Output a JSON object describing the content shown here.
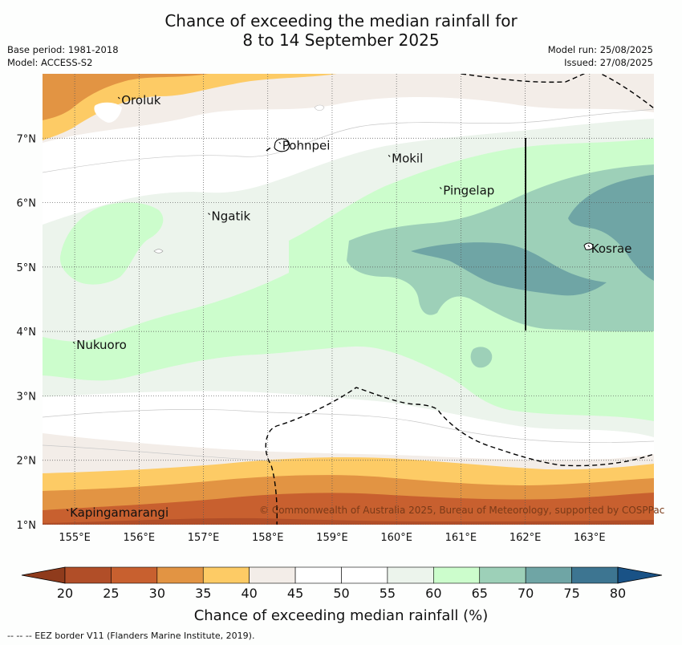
{
  "title_line1": "Chance of exceeding the median rainfall for",
  "title_line2": "8 to 14 September 2025",
  "base_period": "Base period: 1981-2018",
  "model": "Model: ACCESS-S2",
  "model_run": "Model run: 25/08/2025",
  "issued": "Issued: 27/08/2025",
  "copyright": "© Commonwealth of Australia 2025, Bureau of Meteorology, supported by COSPPac",
  "footer": "--  --  -- EEZ border V11 (Flanders Marine Institute, 2019).",
  "colorbar_title": "Chance of exceeding median rainfall (%)",
  "colorbar_ticks": [
    "20",
    "25",
    "30",
    "35",
    "40",
    "45",
    "50",
    "55",
    "60",
    "65",
    "70",
    "75",
    "80"
  ],
  "colors": {
    "c20": "#b14e28",
    "c25": "#c8602f",
    "c30": "#e29443",
    "c35": "#fdcb65",
    "c40": "#f3ede8",
    "c45": "#ffffff",
    "c50": "#ffffff",
    "c55": "#ecf4ec",
    "c60": "#ccfdcc",
    "c65": "#9dd0b8",
    "c70": "#6fa5a5",
    "c75": "#3d7591",
    "c80": "#195286"
  },
  "chart_data": {
    "type": "heatmap",
    "x_ticks": [
      "155°E",
      "156°E",
      "157°E",
      "158°E",
      "159°E",
      "160°E",
      "161°E",
      "162°E",
      "163°E"
    ],
    "y_ticks": [
      "7°N",
      "6°N",
      "5°N",
      "4°N",
      "3°N",
      "2°N",
      "1°N"
    ],
    "lon_range": [
      154.5,
      164.0
    ],
    "lat_range": [
      1.0,
      8.0
    ],
    "places": [
      {
        "name": "Oroluk",
        "lon": 155.7,
        "lat": 7.6
      },
      {
        "name": "Pohnpei",
        "lon": 158.2,
        "lat": 6.9
      },
      {
        "name": "Mokil",
        "lon": 159.9,
        "lat": 6.7
      },
      {
        "name": "Pingelap",
        "lon": 160.7,
        "lat": 6.2
      },
      {
        "name": "Ngatik",
        "lon": 157.1,
        "lat": 5.8
      },
      {
        "name": "Kosrae",
        "lon": 163.0,
        "lat": 5.3
      },
      {
        "name": "Nukuoro",
        "lon": 155.0,
        "lat": 3.8
      },
      {
        "name": "Kapingamarangi",
        "lon": 154.9,
        "lat": 1.2
      }
    ]
  }
}
